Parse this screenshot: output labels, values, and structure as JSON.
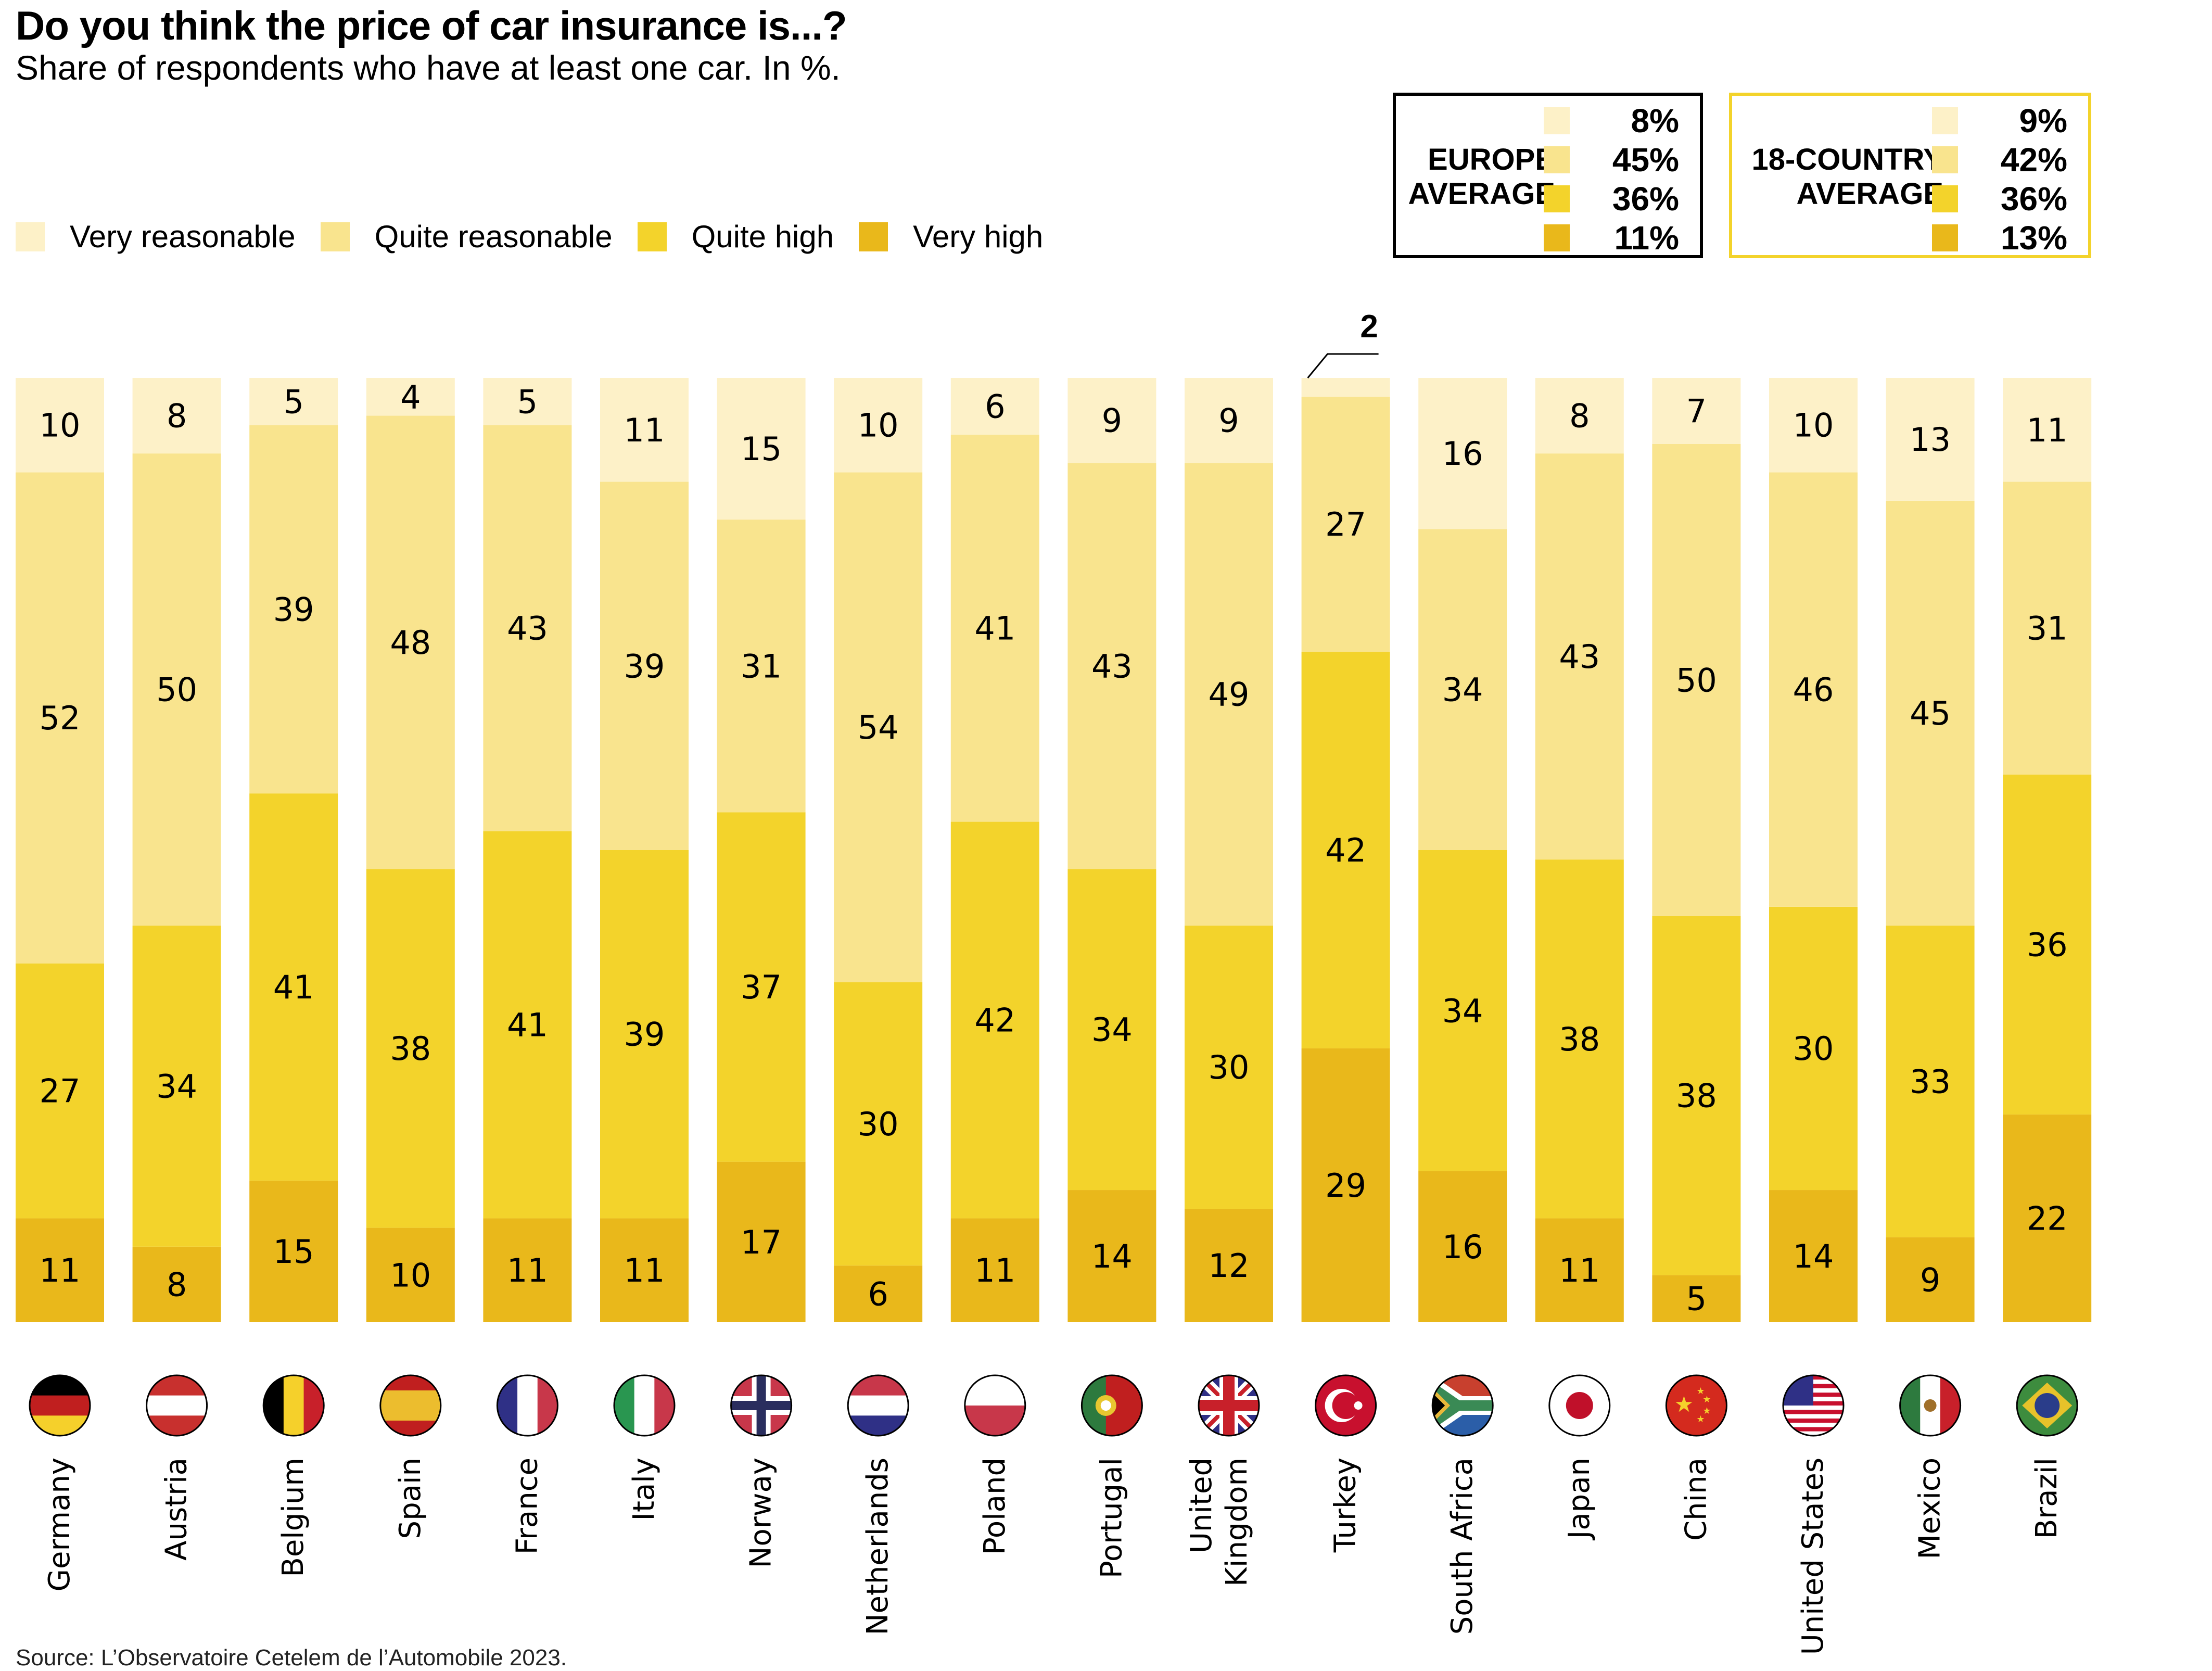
{
  "chart_data": {
    "type": "bar",
    "stacked": true,
    "title": "Do you think the price of car insurance is...?",
    "subtitle": "Share of respondents who have at least one car. In %.",
    "xlabel": "",
    "ylabel": "",
    "ylim": [
      0,
      100
    ],
    "grid": false,
    "legend_position": "top-left",
    "categories": [
      "Germany",
      "Austria",
      "Belgium",
      "Spain",
      "France",
      "Italy",
      "Norway",
      "Netherlands",
      "Poland",
      "Portugal",
      "United Kingdom",
      "Turkey",
      "South Africa",
      "Japan",
      "China",
      "United States",
      "Mexico",
      "Brazil"
    ],
    "series": [
      {
        "name": "Very reasonable",
        "color": "#fdf1c8",
        "values": [
          10,
          8,
          5,
          4,
          5,
          11,
          15,
          10,
          6,
          9,
          9,
          2,
          16,
          8,
          7,
          10,
          13,
          11
        ]
      },
      {
        "name": "Quite reasonable",
        "color": "#f9e48e",
        "values": [
          52,
          50,
          39,
          48,
          43,
          39,
          31,
          54,
          41,
          43,
          49,
          27,
          34,
          43,
          50,
          46,
          45,
          31
        ]
      },
      {
        "name": "Quite high",
        "color": "#f3d32b",
        "values": [
          27,
          34,
          41,
          38,
          41,
          39,
          37,
          30,
          42,
          34,
          30,
          42,
          34,
          38,
          38,
          30,
          33,
          36
        ]
      },
      {
        "name": "Very high",
        "color": "#e9b81b",
        "values": [
          11,
          8,
          15,
          10,
          11,
          11,
          17,
          6,
          11,
          14,
          12,
          29,
          16,
          11,
          5,
          14,
          9,
          22
        ]
      }
    ],
    "annotations": [
      {
        "category": "Turkey",
        "series": "Very reasonable",
        "text": "2",
        "callout": true
      }
    ],
    "averages": [
      {
        "label_lines": [
          "EUROPE",
          "AVERAGE"
        ],
        "border_color": "#000000",
        "values": [
          "8%",
          "45%",
          "36%",
          "11%"
        ]
      },
      {
        "label_lines": [
          "18-COUNTRY",
          "AVERAGE"
        ],
        "border_color": "#f3d32b",
        "values": [
          "9%",
          "42%",
          "36%",
          "13%"
        ]
      }
    ],
    "flags": [
      "germany-flag",
      "austria-flag",
      "belgium-flag",
      "spain-flag",
      "france-flag",
      "italy-flag",
      "norway-flag",
      "netherlands-flag",
      "poland-flag",
      "portugal-flag",
      "united-kingdom-flag",
      "turkey-flag",
      "south-africa-flag",
      "japan-flag",
      "china-flag",
      "united-states-flag",
      "mexico-flag",
      "brazil-flag"
    ]
  },
  "source": "Source: L’Observatoire Cetelem de l’Automobile 2023."
}
